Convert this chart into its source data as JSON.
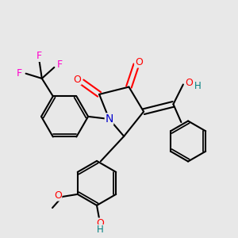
{
  "background_color": "#e8e8e8",
  "bond_color": "#000000",
  "bond_width": 1.5,
  "figsize": [
    3.0,
    3.0
  ],
  "dpi": 100,
  "colors": {
    "N": "#0000cc",
    "O": "#ff0000",
    "F": "#ff00cc",
    "OH_H": "#008080",
    "C": "#000000"
  }
}
